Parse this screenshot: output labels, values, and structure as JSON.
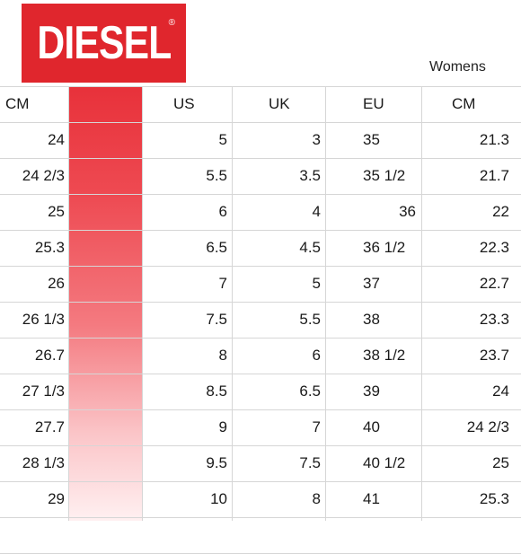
{
  "brand": {
    "logo_text": "DIESEL",
    "registered": "®",
    "logo_color": "#e0262d"
  },
  "section_label": "Womens",
  "table": {
    "headers": [
      "CM",
      "US",
      "UK",
      "EU",
      "CM"
    ],
    "rows": [
      [
        "24",
        "5",
        "3",
        "35",
        "21.3"
      ],
      [
        "24 2/3",
        "5.5",
        "3.5",
        "35 1/2",
        "21.7"
      ],
      [
        "25",
        "6",
        "4",
        "36",
        "22"
      ],
      [
        "25.3",
        "6.5",
        "4.5",
        "36 1/2",
        "22.3"
      ],
      [
        "26",
        "7",
        "5",
        "37",
        "22.7"
      ],
      [
        "26 1/3",
        "7.5",
        "5.5",
        "38",
        "23.3"
      ],
      [
        "26.7",
        "8",
        "6",
        "38 1/2",
        "23.7"
      ],
      [
        "27 1/3",
        "8.5",
        "6.5",
        "39",
        "24"
      ],
      [
        "27.7",
        "9",
        "7",
        "40",
        "24 2/3"
      ],
      [
        "28 1/3",
        "9.5",
        "7.5",
        "40 1/2",
        "25"
      ],
      [
        "29",
        "10",
        "8",
        "41",
        "25.3"
      ]
    ]
  }
}
